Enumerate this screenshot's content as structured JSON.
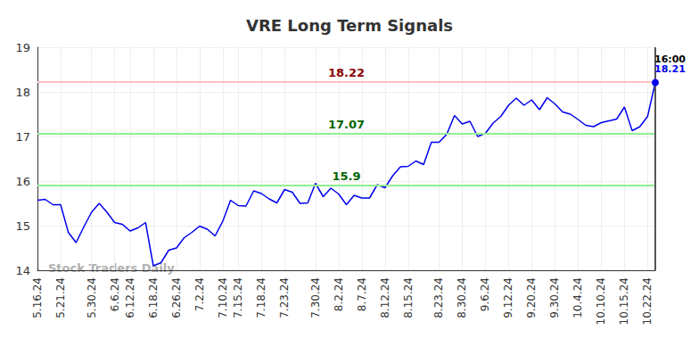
{
  "chart_data": {
    "type": "line",
    "title": "VRE Long Term Signals",
    "watermark": "Stock Traders Daily",
    "last_time": "16:00",
    "color": "#0000ee",
    "grid": true,
    "ylim": [
      14,
      19
    ],
    "yticks": [
      14,
      15,
      16,
      17,
      18,
      19
    ],
    "categories": [
      "5.16.24",
      null,
      null,
      "5.21.24",
      null,
      null,
      null,
      "5.30.24",
      null,
      null,
      "6.6.24",
      null,
      "6.12.24",
      null,
      null,
      "6.18.24",
      null,
      null,
      "6.26.24",
      null,
      null,
      "7.2.24",
      null,
      null,
      "7.10.24",
      null,
      "7.15.24",
      null,
      null,
      "7.18.24",
      null,
      null,
      "7.23.24",
      null,
      null,
      null,
      "7.30.24",
      null,
      null,
      "8.2.24",
      null,
      null,
      "8.7.24",
      null,
      null,
      "8.12.24",
      null,
      null,
      "8.15.24",
      null,
      null,
      null,
      "8.23.24",
      null,
      null,
      "8.30.24",
      null,
      null,
      "9.6.24",
      null,
      null,
      "9.12.24",
      null,
      null,
      "9.20.24",
      null,
      null,
      "9.30.24",
      null,
      null,
      "10.4.24",
      null,
      null,
      "10.10.24",
      null,
      null,
      "10.15.24",
      null,
      null,
      "10.22.24",
      null
    ],
    "values": [
      15.57,
      15.59,
      15.47,
      15.47,
      14.85,
      14.62,
      14.97,
      15.3,
      15.5,
      15.3,
      15.07,
      15.03,
      14.88,
      14.95,
      15.07,
      14.1,
      14.17,
      14.45,
      14.5,
      14.73,
      14.85,
      14.99,
      14.92,
      14.77,
      15.1,
      15.57,
      15.45,
      15.44,
      15.78,
      15.72,
      15.6,
      15.51,
      15.81,
      15.75,
      15.5,
      15.51,
      15.95,
      15.65,
      15.84,
      15.71,
      15.47,
      15.68,
      15.62,
      15.62,
      15.92,
      15.85,
      16.12,
      16.32,
      16.33,
      16.45,
      16.37,
      16.87,
      16.87,
      17.05,
      17.47,
      17.28,
      17.34,
      17.0,
      17.07,
      17.3,
      17.45,
      17.7,
      17.86,
      17.7,
      17.82,
      17.6,
      17.87,
      17.73,
      17.55,
      17.5,
      17.38,
      17.25,
      17.22,
      17.31,
      17.35,
      17.39,
      17.66,
      17.13,
      17.22,
      17.45,
      18.21
    ],
    "signal_lines": [
      {
        "value": 18.22,
        "color": "#ffc0c0",
        "label_color": "#8b0000"
      },
      {
        "value": 17.07,
        "color": "#90ee90",
        "label_color": "#006400"
      },
      {
        "value": 15.9,
        "color": "#90ee90",
        "label_color": "#006400"
      }
    ]
  }
}
